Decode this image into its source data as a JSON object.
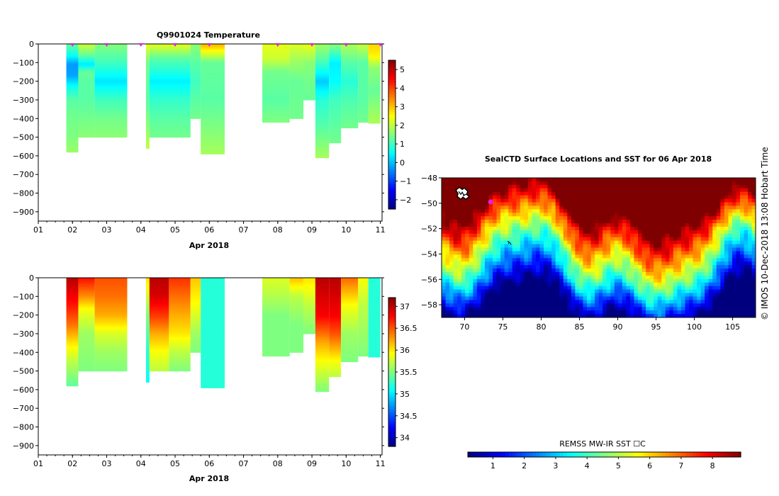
{
  "float_title": "Q9901024  Temperature",
  "map_title": "SealCTD Surface Locations and SST for 06 Apr 2018",
  "side_label": "©  IMOS 10-Dec-2018 13:08 Hobart Time",
  "colors": {
    "jet": [
      "#00007f",
      "#0000ff",
      "#007fff",
      "#00ffff",
      "#7fff7f",
      "#ffff00",
      "#ff7f00",
      "#ff0000",
      "#7f0000"
    ],
    "marker": "#e020e0"
  },
  "chart_data": [
    {
      "type": "heatmap",
      "name": "temperature-section",
      "title": "Q9901024  Temperature",
      "xlabel": "Apr 2018",
      "ylabel": "",
      "x_ticks": [
        "01",
        "02",
        "03",
        "04",
        "05",
        "06",
        "07",
        "08",
        "09",
        "10",
        "11"
      ],
      "xlim": [
        1,
        11.05
      ],
      "y_ticks": [
        0,
        -100,
        -200,
        -300,
        -400,
        -500,
        -600,
        -700,
        -800,
        -900
      ],
      "ylim": [
        -950,
        0
      ],
      "colorbar": {
        "ticks": [
          5,
          4,
          3,
          2,
          1,
          0,
          -1,
          -2
        ],
        "range": [
          -2.5,
          5.5
        ]
      },
      "profile_markers_day": [
        2.0,
        3.0,
        4.0,
        5.0,
        6.0,
        8.0,
        9.0,
        10.0,
        11.0
      ],
      "profiles": [
        {
          "t0": 1.82,
          "t1": 2.17,
          "bot": -580,
          "v": [
            [
              -10,
              1.2
            ],
            [
              -60,
              0.6
            ],
            [
              -110,
              -0.3
            ],
            [
              -170,
              -0.2
            ],
            [
              -230,
              0.6
            ],
            [
              -300,
              1.2
            ],
            [
              -400,
              1.4
            ],
            [
              -500,
              1.5
            ],
            [
              -580,
              1.7
            ]
          ]
        },
        {
          "t0": 2.17,
          "t1": 2.65,
          "bot": -500,
          "v": [
            [
              -10,
              2.0
            ],
            [
              -60,
              1.3
            ],
            [
              -110,
              0.3
            ],
            [
              -150,
              1.3
            ],
            [
              -200,
              1.2
            ],
            [
              -300,
              1.2
            ],
            [
              -400,
              1.4
            ],
            [
              -500,
              1.6
            ]
          ]
        },
        {
          "t0": 2.65,
          "t1": 3.6,
          "bot": -500,
          "v": [
            [
              -10,
              1.5
            ],
            [
              -100,
              1.0
            ],
            [
              -200,
              0.3
            ],
            [
              -300,
              1.0
            ],
            [
              -400,
              1.4
            ],
            [
              -500,
              1.6
            ]
          ]
        },
        {
          "t0": 4.15,
          "t1": 4.25,
          "bot": -560,
          "v": [
            [
              -10,
              2.3
            ],
            [
              -100,
              1.4
            ],
            [
              -300,
              1.2
            ],
            [
              -500,
              1.8
            ],
            [
              -560,
              2.0
            ]
          ]
        },
        {
          "t0": 4.25,
          "t1": 5.45,
          "bot": -500,
          "v": [
            [
              -10,
              2.2
            ],
            [
              -80,
              1.2
            ],
            [
              -200,
              0.4
            ],
            [
              -300,
              0.9
            ],
            [
              -400,
              1.2
            ],
            [
              -500,
              1.4
            ]
          ]
        },
        {
          "t0": 5.45,
          "t1": 5.75,
          "bot": -400,
          "v": [
            [
              -10,
              1.6
            ],
            [
              -100,
              1.2
            ],
            [
              -200,
              1.0
            ],
            [
              -300,
              1.2
            ],
            [
              -400,
              1.4
            ]
          ]
        },
        {
          "t0": 5.75,
          "t1": 6.45,
          "bot": -590,
          "v": [
            [
              -10,
              3.0
            ],
            [
              -100,
              1.3
            ],
            [
              -300,
              1.2
            ],
            [
              -450,
              1.5
            ],
            [
              -590,
              1.8
            ]
          ]
        },
        {
          "t0": 7.55,
          "t1": 8.35,
          "bot": -420,
          "v": [
            [
              -10,
              2.3
            ],
            [
              -80,
              2.1
            ],
            [
              -150,
              1.4
            ],
            [
              -300,
              1.2
            ],
            [
              -420,
              1.5
            ]
          ]
        },
        {
          "t0": 8.35,
          "t1": 8.75,
          "bot": -400,
          "v": [
            [
              -10,
              2.2
            ],
            [
              -80,
              1.8
            ],
            [
              -200,
              1.3
            ],
            [
              -400,
              1.4
            ]
          ]
        },
        {
          "t0": 8.75,
          "t1": 9.1,
          "bot": -300,
          "v": [
            [
              -10,
              2.3
            ],
            [
              -100,
              1.6
            ],
            [
              -200,
              1.4
            ],
            [
              -300,
              1.3
            ]
          ]
        },
        {
          "t0": 9.1,
          "t1": 9.5,
          "bot": -610,
          "v": [
            [
              -10,
              1.7
            ],
            [
              -80,
              1.2
            ],
            [
              -200,
              0.1
            ],
            [
              -300,
              0.8
            ],
            [
              -450,
              1.2
            ],
            [
              -610,
              1.8
            ]
          ]
        },
        {
          "t0": 9.5,
          "t1": 9.85,
          "bot": -530,
          "v": [
            [
              -10,
              1.5
            ],
            [
              -100,
              0.4
            ],
            [
              -200,
              0.5
            ],
            [
              -300,
              1.0
            ],
            [
              -530,
              1.4
            ]
          ]
        },
        {
          "t0": 9.85,
          "t1": 10.35,
          "bot": -450,
          "v": [
            [
              -10,
              1.8
            ],
            [
              -100,
              1.2
            ],
            [
              -200,
              0.8
            ],
            [
              -300,
              1.1
            ],
            [
              -450,
              1.4
            ]
          ]
        },
        {
          "t0": 10.35,
          "t1": 10.65,
          "bot": -420,
          "v": [
            [
              -10,
              2.0
            ],
            [
              -100,
              1.2
            ],
            [
              -300,
              1.2
            ],
            [
              -420,
              1.4
            ]
          ]
        },
        {
          "t0": 10.65,
          "t1": 11.0,
          "bot": -425,
          "v": [
            [
              -10,
              2.8
            ],
            [
              -60,
              2.6
            ],
            [
              -130,
              1.6
            ],
            [
              -250,
              1.3
            ],
            [
              -400,
              1.8
            ],
            [
              -425,
              1.8
            ]
          ]
        }
      ]
    },
    {
      "type": "heatmap",
      "name": "salinity-section",
      "title": "",
      "xlabel": "Apr 2018",
      "ylabel": "",
      "x_ticks": [
        "01",
        "02",
        "03",
        "04",
        "05",
        "06",
        "07",
        "08",
        "09",
        "10",
        "11"
      ],
      "xlim": [
        1,
        11.05
      ],
      "y_ticks": [
        0,
        -100,
        -200,
        -300,
        -400,
        -500,
        -600,
        -700,
        -800,
        -900
      ],
      "ylim": [
        -950,
        0
      ],
      "colorbar": {
        "ticks": [
          37,
          36.5,
          36,
          35.5,
          35,
          34.5,
          34
        ],
        "range": [
          33.8,
          37.2
        ]
      },
      "profiles": [
        {
          "t0": 1.82,
          "t1": 2.17,
          "bot": -580,
          "v": [
            [
              -10,
              37.0
            ],
            [
              -150,
              36.7
            ],
            [
              -250,
              36.4
            ],
            [
              -350,
              36.0
            ],
            [
              -450,
              35.7
            ],
            [
              -580,
              35.4
            ]
          ]
        },
        {
          "t0": 2.17,
          "t1": 2.65,
          "bot": -500,
          "v": [
            [
              -10,
              36.7
            ],
            [
              -100,
              36.3
            ],
            [
              -170,
              35.9
            ],
            [
              -300,
              35.6
            ],
            [
              -500,
              35.5
            ]
          ]
        },
        {
          "t0": 2.65,
          "t1": 3.6,
          "bot": -500,
          "v": [
            [
              -10,
              36.5
            ],
            [
              -100,
              36.4
            ],
            [
              -200,
              36.2
            ],
            [
              -300,
              35.8
            ],
            [
              -400,
              35.6
            ],
            [
              -500,
              35.5
            ]
          ]
        },
        {
          "t0": 4.15,
          "t1": 4.25,
          "bot": -560,
          "v": [
            [
              -10,
              36.0
            ],
            [
              -200,
              35.5
            ],
            [
              -400,
              35.2
            ],
            [
              -560,
              35.1
            ]
          ]
        },
        {
          "t0": 4.25,
          "t1": 4.82,
          "bot": -500,
          "v": [
            [
              -10,
              37.0
            ],
            [
              -100,
              36.9
            ],
            [
              -200,
              36.6
            ],
            [
              -300,
              36.2
            ],
            [
              -400,
              35.9
            ],
            [
              -500,
              35.7
            ]
          ]
        },
        {
          "t0": 4.82,
          "t1": 5.45,
          "bot": -500,
          "v": [
            [
              -10,
              36.6
            ],
            [
              -150,
              36.3
            ],
            [
              -300,
              36.0
            ],
            [
              -400,
              35.7
            ],
            [
              -500,
              35.5
            ]
          ]
        },
        {
          "t0": 5.45,
          "t1": 5.75,
          "bot": -400,
          "v": [
            [
              -10,
              36.1
            ],
            [
              -150,
              35.9
            ],
            [
              -300,
              35.6
            ],
            [
              -400,
              35.5
            ]
          ]
        },
        {
          "t0": 5.75,
          "t1": 6.45,
          "bot": -590,
          "v": [
            [
              -10,
              35.2
            ],
            [
              -590,
              35.2
            ]
          ]
        },
        {
          "t0": 7.55,
          "t1": 8.35,
          "bot": -420,
          "v": [
            [
              -10,
              35.8
            ],
            [
              -80,
              35.7
            ],
            [
              -200,
              35.5
            ],
            [
              -420,
              35.5
            ]
          ]
        },
        {
          "t0": 8.35,
          "t1": 8.75,
          "bot": -400,
          "v": [
            [
              -10,
              36.1
            ],
            [
              -100,
              35.7
            ],
            [
              -250,
              35.5
            ],
            [
              -400,
              35.5
            ]
          ]
        },
        {
          "t0": 8.75,
          "t1": 9.1,
          "bot": -300,
          "v": [
            [
              -10,
              36.0
            ],
            [
              -150,
              35.7
            ],
            [
              -300,
              35.5
            ]
          ]
        },
        {
          "t0": 9.1,
          "t1": 9.5,
          "bot": -610,
          "v": [
            [
              -10,
              37.0
            ],
            [
              -200,
              36.8
            ],
            [
              -350,
              36.2
            ],
            [
              -450,
              35.9
            ],
            [
              -610,
              35.5
            ]
          ]
        },
        {
          "t0": 9.5,
          "t1": 9.85,
          "bot": -530,
          "v": [
            [
              -10,
              37.0
            ],
            [
              -200,
              36.8
            ],
            [
              -300,
              36.5
            ],
            [
              -450,
              35.9
            ],
            [
              -530,
              35.7
            ]
          ]
        },
        {
          "t0": 9.85,
          "t1": 10.35,
          "bot": -450,
          "v": [
            [
              -10,
              36.4
            ],
            [
              -150,
              35.9
            ],
            [
              -300,
              35.6
            ],
            [
              -450,
              35.5
            ]
          ]
        },
        {
          "t0": 10.35,
          "t1": 10.65,
          "bot": -420,
          "v": [
            [
              -10,
              35.9
            ],
            [
              -150,
              35.7
            ],
            [
              -420,
              35.5
            ]
          ]
        },
        {
          "t0": 10.65,
          "t1": 11.0,
          "bot": -425,
          "v": [
            [
              -10,
              35.2
            ],
            [
              -425,
              35.2
            ]
          ]
        }
      ]
    },
    {
      "type": "heatmap",
      "name": "sst-map",
      "title": "SealCTD Surface Locations and SST for 06 Apr 2018",
      "xlabel": "",
      "ylabel": "",
      "x_ticks": [
        70,
        75,
        80,
        85,
        90,
        95,
        100,
        105
      ],
      "xlim": [
        67,
        108
      ],
      "y_ticks": [
        -48,
        -50,
        -52,
        -54,
        -56,
        -58
      ],
      "ylim": [
        -59,
        -48
      ],
      "colorbar": {
        "label": "REMSS MW-IR SST ☐C",
        "ticks": [
          1,
          2,
          3,
          4,
          5,
          6,
          7,
          8
        ],
        "range": [
          0.2,
          8.9
        ]
      },
      "island_lon_lat": [
        69.6,
        -49.3
      ],
      "seal_location_lon_lat": [
        73.4,
        -49.9
      ],
      "track_point_lon_lat": [
        75.8,
        -53.1
      ]
    }
  ]
}
